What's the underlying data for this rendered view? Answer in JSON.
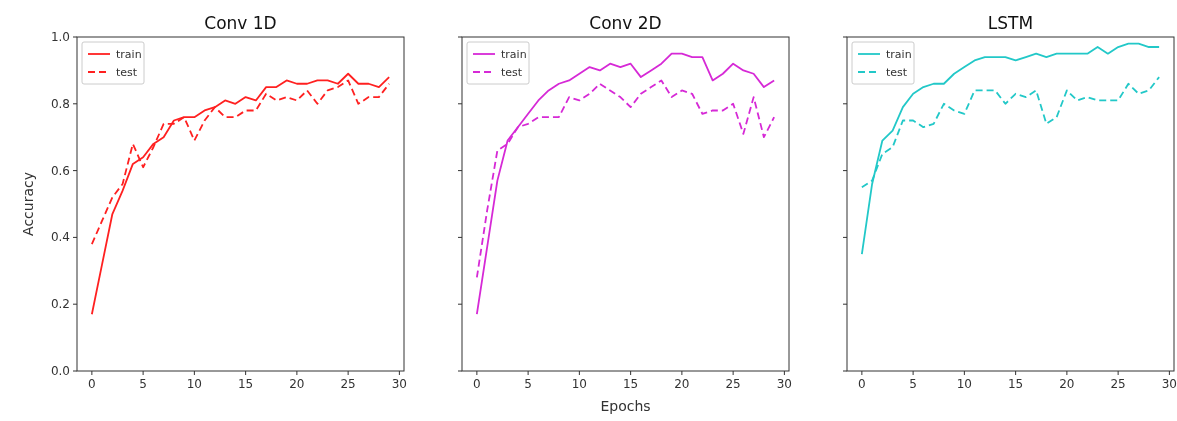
{
  "chart_data": [
    {
      "type": "line",
      "title": "Conv 1D",
      "ylabel": "Accuracy",
      "x": [
        0,
        1,
        2,
        3,
        4,
        5,
        6,
        7,
        8,
        9,
        10,
        11,
        12,
        13,
        14,
        15,
        16,
        17,
        18,
        19,
        20,
        21,
        22,
        23,
        24,
        25,
        26,
        27,
        28,
        29
      ],
      "xlim": [
        -1.45,
        30.45
      ],
      "xticks": [
        0,
        5,
        10,
        15,
        20,
        25,
        30
      ],
      "ylim": [
        0,
        1
      ],
      "yticks": [
        {
          "value": 0,
          "label": "0.0"
        },
        0.2,
        0.4,
        0.6,
        0.8,
        {
          "value": 1,
          "label": "1.0"
        }
      ],
      "legend": "top left",
      "marker": "none",
      "line_style": "solid",
      "series": [
        {
          "name": "train",
          "color": "#ff2020",
          "values": [
            0.17,
            0.32,
            0.47,
            0.54,
            0.62,
            0.64,
            0.68,
            0.7,
            0.75,
            0.76,
            0.76,
            0.78,
            0.79,
            0.81,
            0.8,
            0.82,
            0.81,
            0.85,
            0.85,
            0.87,
            0.86,
            0.86,
            0.87,
            0.87,
            0.86,
            0.89,
            0.86,
            0.86,
            0.85,
            0.88
          ]
        },
        {
          "name": "test",
          "color": "#ff2020",
          "line_style": "dashed",
          "values": [
            0.38,
            0.45,
            0.52,
            0.56,
            0.68,
            0.61,
            0.67,
            0.74,
            0.74,
            0.76,
            0.69,
            0.75,
            0.79,
            0.76,
            0.76,
            0.78,
            0.78,
            0.83,
            0.81,
            0.82,
            0.81,
            0.84,
            0.8,
            0.84,
            0.85,
            0.87,
            0.8,
            0.82,
            0.82,
            0.86
          ]
        }
      ]
    },
    {
      "type": "line",
      "title": "Conv 2D",
      "xlabel": "Epochs",
      "tick_labels": "x",
      "x": [
        0,
        1,
        2,
        3,
        4,
        5,
        6,
        7,
        8,
        9,
        10,
        11,
        12,
        13,
        14,
        15,
        16,
        17,
        18,
        19,
        20,
        21,
        22,
        23,
        24,
        25,
        26,
        27,
        28,
        29
      ],
      "xlim": [
        -1.45,
        30.45
      ],
      "xticks": [
        0,
        5,
        10,
        15,
        20,
        25,
        30
      ],
      "ylim": [
        0,
        1
      ],
      "yticks": [
        {
          "value": 0,
          "label": null
        },
        {
          "value": 0.2,
          "label": null
        },
        {
          "value": 0.4,
          "label": null
        },
        {
          "value": 0.6,
          "label": null
        },
        {
          "value": 0.8,
          "label": null
        },
        {
          "value": 1,
          "label": null
        }
      ],
      "legend": "top left",
      "marker": "none",
      "line_style": "solid",
      "series": [
        {
          "name": "train",
          "color": "#d629d6",
          "values": [
            0.17,
            0.37,
            0.57,
            0.69,
            0.73,
            0.77,
            0.81,
            0.84,
            0.86,
            0.87,
            0.89,
            0.91,
            0.9,
            0.92,
            0.91,
            0.92,
            0.88,
            0.9,
            0.92,
            0.95,
            0.95,
            0.94,
            0.94,
            0.87,
            0.89,
            0.92,
            0.9,
            0.89,
            0.85,
            0.87
          ]
        },
        {
          "name": "test",
          "color": "#d629d6",
          "line_style": "dashed",
          "values": [
            0.28,
            0.48,
            0.66,
            0.68,
            0.73,
            0.74,
            0.76,
            0.76,
            0.76,
            0.82,
            0.81,
            0.83,
            0.86,
            0.84,
            0.82,
            0.79,
            0.83,
            0.85,
            0.87,
            0.82,
            0.84,
            0.83,
            0.77,
            0.78,
            0.78,
            0.8,
            0.71,
            0.82,
            0.7,
            0.76
          ]
        }
      ]
    },
    {
      "type": "line",
      "title": "LSTM",
      "tick_labels": "x",
      "x": [
        0,
        1,
        2,
        3,
        4,
        5,
        6,
        7,
        8,
        9,
        10,
        11,
        12,
        13,
        14,
        15,
        16,
        17,
        18,
        19,
        20,
        21,
        22,
        23,
        24,
        25,
        26,
        27,
        28,
        29
      ],
      "xlim": [
        -1.45,
        30.45
      ],
      "xticks": [
        0,
        5,
        10,
        15,
        20,
        25,
        30
      ],
      "ylim": [
        0,
        1
      ],
      "yticks": [
        {
          "value": 0,
          "label": null
        },
        {
          "value": 0.2,
          "label": null
        },
        {
          "value": 0.4,
          "label": null
        },
        {
          "value": 0.6,
          "label": null
        },
        {
          "value": 0.8,
          "label": null
        },
        {
          "value": 1,
          "label": null
        }
      ],
      "legend": "top left",
      "marker": "none",
      "line_style": "solid",
      "series": [
        {
          "name": "train",
          "color": "#22c8c8",
          "values": [
            0.35,
            0.56,
            0.69,
            0.72,
            0.79,
            0.83,
            0.85,
            0.86,
            0.86,
            0.89,
            0.91,
            0.93,
            0.94,
            0.94,
            0.94,
            0.93,
            0.94,
            0.95,
            0.94,
            0.95,
            0.95,
            0.95,
            0.95,
            0.97,
            0.95,
            0.97,
            0.98,
            0.98,
            0.97,
            0.97
          ]
        },
        {
          "name": "test",
          "color": "#22c8c8",
          "line_style": "dashed",
          "values": [
            0.55,
            0.57,
            0.65,
            0.67,
            0.75,
            0.75,
            0.73,
            0.74,
            0.8,
            0.78,
            0.77,
            0.84,
            0.84,
            0.84,
            0.8,
            0.83,
            0.82,
            0.84,
            0.74,
            0.76,
            0.84,
            0.81,
            0.82,
            0.81,
            0.81,
            0.81,
            0.86,
            0.83,
            0.84,
            0.88
          ]
        }
      ]
    }
  ]
}
